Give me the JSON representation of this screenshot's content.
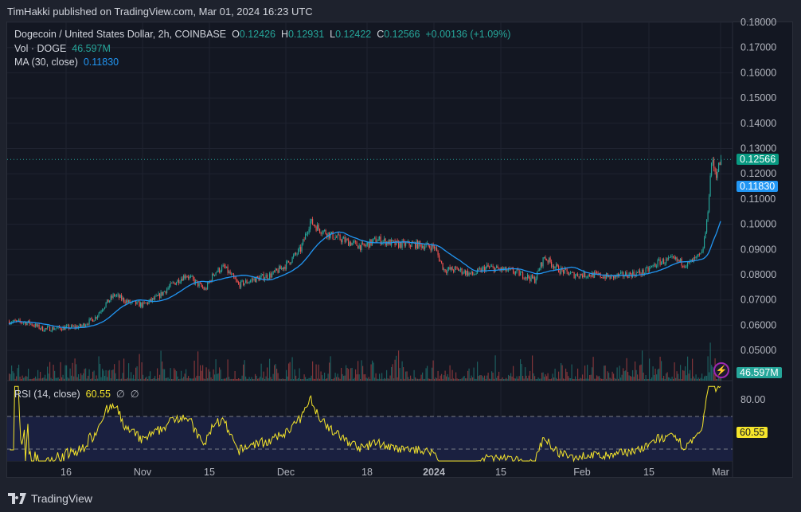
{
  "publish_line": "TimHakki published on TradingView.com, Mar 01, 2024 16:23 UTC",
  "legend": {
    "symbol": "Dogecoin / United States Dollar, 2h, COINBASE",
    "o_label": "O",
    "o": "0.12426",
    "h_label": "H",
    "h": "0.12931",
    "l_label": "L",
    "l": "0.12422",
    "c_label": "C",
    "c": "0.12566",
    "change": "+0.00136 (+1.09%)",
    "vol_label": "Vol · DOGE",
    "vol": "46.597M",
    "ma_label": "MA (30, close)",
    "ma": "0.11830",
    "rsi_label": "RSI (14, close)",
    "rsi": "60.55",
    "rsi_extra1": "∅",
    "rsi_extra2": "∅"
  },
  "tags": {
    "last_price": "0.12566",
    "ma_value": "0.11830",
    "volume": "46.597M",
    "rsi_value": "60.55"
  },
  "footer": {
    "brand": "TradingView"
  },
  "icons": {
    "alert": "lightning-bolt-icon",
    "logo": "tradingview-logo"
  },
  "colors": {
    "up": "#26a69a",
    "down": "#ef5350",
    "ma": "#2196f3",
    "rsi": "#f5e52b",
    "background": "#131722"
  },
  "chart_data": {
    "type": "candlestick",
    "interval": "2h",
    "price_axis": {
      "ticks": [
        "0.18000",
        "0.17000",
        "0.16000",
        "0.15000",
        "0.14000",
        "0.13000",
        "0.12000",
        "0.11000",
        "0.10000",
        "0.09000",
        "0.08000",
        "0.07000",
        "0.06000",
        "0.05000"
      ],
      "range": [
        0.05,
        0.18
      ]
    },
    "time_axis": {
      "ticks": [
        {
          "label": "16",
          "date": "2023-10-16"
        },
        {
          "label": "Nov",
          "date": "2023-11-01"
        },
        {
          "label": "15",
          "date": "2023-11-15"
        },
        {
          "label": "Dec",
          "date": "2023-12-01"
        },
        {
          "label": "18",
          "date": "2023-12-18"
        },
        {
          "label": "2024",
          "date": "2024-01-01"
        },
        {
          "label": "15",
          "date": "2024-01-15"
        },
        {
          "label": "Feb",
          "date": "2024-02-01"
        },
        {
          "label": "15",
          "date": "2024-02-15"
        },
        {
          "label": "Mar",
          "date": "2024-03-01"
        }
      ]
    },
    "approx_close": [
      [
        "2023-10-04",
        0.0615
      ],
      [
        "2023-10-08",
        0.061
      ],
      [
        "2023-10-11",
        0.0585
      ],
      [
        "2023-10-16",
        0.059
      ],
      [
        "2023-10-19",
        0.0595
      ],
      [
        "2023-10-22",
        0.063
      ],
      [
        "2023-10-24",
        0.068
      ],
      [
        "2023-10-26",
        0.072
      ],
      [
        "2023-10-29",
        0.069
      ],
      [
        "2023-11-01",
        0.068
      ],
      [
        "2023-11-04",
        0.071
      ],
      [
        "2023-11-07",
        0.076
      ],
      [
        "2023-11-10",
        0.08
      ],
      [
        "2023-11-12",
        0.077
      ],
      [
        "2023-11-14",
        0.074
      ],
      [
        "2023-11-16",
        0.081
      ],
      [
        "2023-11-18",
        0.083
      ],
      [
        "2023-11-21",
        0.076
      ],
      [
        "2023-11-24",
        0.078
      ],
      [
        "2023-11-28",
        0.08
      ],
      [
        "2023-12-01",
        0.084
      ],
      [
        "2023-12-04",
        0.09
      ],
      [
        "2023-12-06",
        0.101
      ],
      [
        "2023-12-08",
        0.098
      ],
      [
        "2023-12-11",
        0.095
      ],
      [
        "2023-12-14",
        0.093
      ],
      [
        "2023-12-17",
        0.091
      ],
      [
        "2023-12-20",
        0.094
      ],
      [
        "2023-12-24",
        0.092
      ],
      [
        "2023-12-28",
        0.092
      ],
      [
        "2024-01-01",
        0.091
      ],
      [
        "2024-01-03",
        0.082
      ],
      [
        "2024-01-06",
        0.082
      ],
      [
        "2024-01-09",
        0.08
      ],
      [
        "2024-01-12",
        0.083
      ],
      [
        "2024-01-15",
        0.082
      ],
      [
        "2024-01-18",
        0.081
      ],
      [
        "2024-01-22",
        0.078
      ],
      [
        "2024-01-24",
        0.087
      ],
      [
        "2024-01-27",
        0.082
      ],
      [
        "2024-01-30",
        0.08
      ],
      [
        "2024-02-03",
        0.08
      ],
      [
        "2024-02-07",
        0.079
      ],
      [
        "2024-02-10",
        0.08
      ],
      [
        "2024-02-14",
        0.081
      ],
      [
        "2024-02-17",
        0.085
      ],
      [
        "2024-02-20",
        0.086
      ],
      [
        "2024-02-23",
        0.084
      ],
      [
        "2024-02-26",
        0.088
      ],
      [
        "2024-02-27",
        0.1
      ],
      [
        "2024-02-28",
        0.125
      ],
      [
        "2024-02-29",
        0.12
      ],
      [
        "2024-03-01",
        0.12566
      ]
    ],
    "last_price": 0.12566,
    "ma_30": 0.1183,
    "volume_last": "46.597M",
    "rsi": {
      "length": 14,
      "last": 60.55,
      "ticks": [
        "80.00"
      ],
      "bands": [
        70,
        30
      ]
    }
  }
}
